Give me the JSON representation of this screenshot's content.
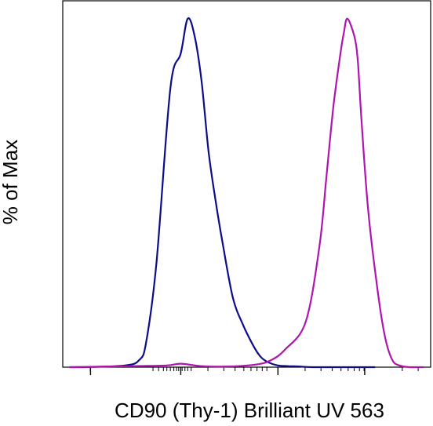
{
  "chart_data": {
    "type": "line",
    "xlabel": "CD90 (Thy-1) Brilliant UV 563",
    "ylabel": "% of Max",
    "title": "",
    "x_scale": "log",
    "ylim": [
      0,
      100
    ],
    "grid": false,
    "legend": "none",
    "x_tick_labels_shown": false,
    "series": [
      {
        "color": "#0d0d8a",
        "x": [
          0.1,
          0.3,
          0.9,
          1.1,
          1.2,
          1.35,
          1.55,
          1.7,
          1.8,
          1.9,
          2.0,
          2.1,
          2.2,
          2.3,
          2.45,
          2.6,
          2.75,
          2.85,
          2.95,
          3.1,
          3.25,
          3.4,
          3.6,
          4.0,
          4.5
        ],
        "y": [
          0,
          0,
          0.5,
          2,
          7,
          30,
          80,
          90,
          100,
          95,
          82,
          62,
          48,
          36,
          20,
          12,
          6,
          3,
          1.5,
          0.5,
          0.3,
          0.2,
          0,
          0,
          0
        ]
      },
      {
        "color": "#b014b0",
        "x": [
          0.1,
          1.0,
          1.5,
          1.7,
          2.0,
          2.4,
          2.8,
          3.0,
          3.2,
          3.5,
          3.7,
          3.8,
          3.9,
          4.0,
          4.05,
          4.1,
          4.2,
          4.25,
          4.3,
          4.4,
          4.55,
          4.65,
          4.75,
          4.85,
          5.0,
          5.2
        ],
        "y": [
          0,
          0.3,
          0.5,
          1,
          0.3,
          0.2,
          0.8,
          2,
          5,
          13,
          35,
          55,
          75,
          90,
          96,
          100,
          95,
          88,
          72,
          45,
          20,
          8,
          2,
          0.5,
          0,
          0
        ]
      }
    ]
  },
  "axes": {
    "xlabel": "CD90 (Thy-1) Brilliant UV 563",
    "ylabel": "% of Max"
  }
}
